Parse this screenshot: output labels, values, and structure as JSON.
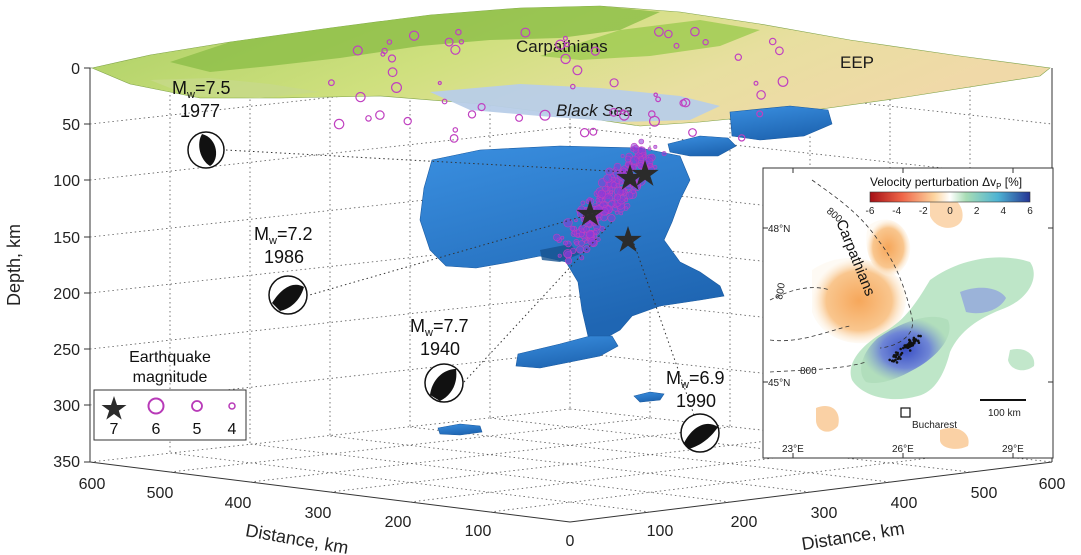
{
  "axes": {
    "depth_label": "Depth, km",
    "depth_ticks": [
      "0",
      "50",
      "100",
      "150",
      "200",
      "250",
      "300",
      "350"
    ],
    "distance_label_left": "Distance, km",
    "distance_label_right": "Distance, km",
    "distance_ticks_left": [
      "600",
      "500",
      "400",
      "300",
      "200",
      "100",
      "0"
    ],
    "distance_ticks_right": [
      "100",
      "200",
      "300",
      "400",
      "500",
      "600"
    ]
  },
  "surface_labels": {
    "carpathians": "Carpathians",
    "eep": "EEP",
    "black_sea": "Black Sea"
  },
  "earthquakes": [
    {
      "mw_prefix": "M",
      "mw_sub": "w",
      "magnitude": "=7.5",
      "year": "1977"
    },
    {
      "mw_prefix": "M",
      "mw_sub": "w",
      "magnitude": "=7.2",
      "year": "1986"
    },
    {
      "mw_prefix": "M",
      "mw_sub": "w",
      "magnitude": "=7.7",
      "year": "1940"
    },
    {
      "mw_prefix": "M",
      "mw_sub": "w",
      "magnitude": "=6.9",
      "year": "1990"
    }
  ],
  "legend": {
    "title_line1": "Earthquake",
    "title_line2": "magnitude",
    "values": [
      "7",
      "6",
      "5",
      "4"
    ]
  },
  "inset": {
    "title": "Velocity perturbation Δv",
    "title_sub": "P",
    "title_unit": " [%]",
    "colorbar_ticks": [
      "-6",
      "-4",
      "-2",
      "0",
      "2",
      "4",
      "6"
    ],
    "colorbar_colors": [
      "#a50f15",
      "#d7301f",
      "#ef6548",
      "#fc8d59",
      "#fdbb84",
      "#fdd49e",
      "#ffffff",
      "#ffffff",
      "#ccebc5",
      "#a8ddb5",
      "#7bccc4",
      "#4eb3d3",
      "#2b8cbe",
      "#0868ac"
    ],
    "lat_labels": [
      "48°N",
      "45°N"
    ],
    "lon_labels": [
      "23°E",
      "26°E",
      "29°E"
    ],
    "contour_labels": [
      "800",
      "800",
      "800"
    ],
    "carpathians": "Carpathians",
    "city": "Bucharest",
    "scalebar": "100 km"
  },
  "colors": {
    "body": "#2f7fd0",
    "hypocenter": "#8a3bd8",
    "hypocenter_ring": "#c040c0",
    "terrain_green": "#9dc85a",
    "sea": "#b9cde6"
  }
}
